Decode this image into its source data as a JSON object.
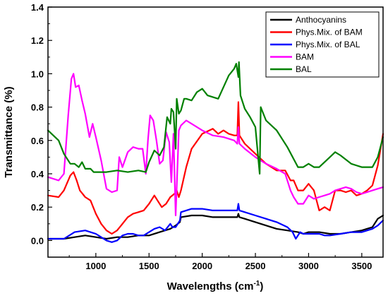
{
  "chart_data": {
    "type": "line",
    "title": "",
    "xlabel": "Wavelengths (cm",
    "xlabel_sup": "-1",
    "xlabel_tail": ")",
    "ylabel": "Transmittance (%)",
    "xlim": [
      550,
      3700
    ],
    "ylim": [
      -0.1,
      1.4
    ],
    "x_ticks": [
      1000,
      1500,
      2000,
      2500,
      3000,
      3500
    ],
    "x_tick_labels": [
      "1000",
      "1500",
      "2000",
      "2500",
      "3000",
      "3500"
    ],
    "y_ticks": [
      0.0,
      0.2,
      0.4,
      0.6,
      0.8,
      1.0,
      1.2,
      1.4
    ],
    "y_tick_labels": [
      "0.0",
      "0.2",
      "0.4",
      "0.6",
      "0.8",
      "1.0",
      "1.2",
      "1.4"
    ],
    "grid": false,
    "legend_position": "top-right",
    "series": [
      {
        "name": "Anthocyanins",
        "color": "#000000",
        "points": [
          [
            550,
            0.01
          ],
          [
            700,
            0.01
          ],
          [
            800,
            0.02
          ],
          [
            900,
            0.03
          ],
          [
            1000,
            0.02
          ],
          [
            1100,
            0.01
          ],
          [
            1200,
            0.02
          ],
          [
            1300,
            0.02
          ],
          [
            1400,
            0.03
          ],
          [
            1500,
            0.03
          ],
          [
            1600,
            0.05
          ],
          [
            1650,
            0.06
          ],
          [
            1700,
            0.07
          ],
          [
            1750,
            0.09
          ],
          [
            1790,
            0.11
          ],
          [
            1800,
            0.14
          ],
          [
            1900,
            0.15
          ],
          [
            2000,
            0.15
          ],
          [
            2100,
            0.14
          ],
          [
            2200,
            0.14
          ],
          [
            2300,
            0.14
          ],
          [
            2330,
            0.14
          ],
          [
            2340,
            0.16
          ],
          [
            2350,
            0.14
          ],
          [
            2400,
            0.13
          ],
          [
            2500,
            0.11
          ],
          [
            2600,
            0.09
          ],
          [
            2700,
            0.07
          ],
          [
            2800,
            0.06
          ],
          [
            2900,
            0.05
          ],
          [
            2950,
            0.04
          ],
          [
            3000,
            0.05
          ],
          [
            3100,
            0.05
          ],
          [
            3200,
            0.04
          ],
          [
            3300,
            0.04
          ],
          [
            3400,
            0.05
          ],
          [
            3500,
            0.06
          ],
          [
            3600,
            0.08
          ],
          [
            3650,
            0.13
          ],
          [
            3700,
            0.15
          ]
        ]
      },
      {
        "name": "Phys.Mix. of BAM",
        "color": "#ff0000",
        "points": [
          [
            550,
            0.27
          ],
          [
            650,
            0.26
          ],
          [
            700,
            0.3
          ],
          [
            760,
            0.39
          ],
          [
            790,
            0.41
          ],
          [
            820,
            0.36
          ],
          [
            850,
            0.3
          ],
          [
            900,
            0.26
          ],
          [
            950,
            0.24
          ],
          [
            1000,
            0.16
          ],
          [
            1050,
            0.1
          ],
          [
            1100,
            0.06
          ],
          [
            1150,
            0.04
          ],
          [
            1200,
            0.06
          ],
          [
            1250,
            0.1
          ],
          [
            1300,
            0.14
          ],
          [
            1350,
            0.16
          ],
          [
            1400,
            0.17
          ],
          [
            1450,
            0.18
          ],
          [
            1500,
            0.22
          ],
          [
            1550,
            0.27
          ],
          [
            1580,
            0.24
          ],
          [
            1620,
            0.2
          ],
          [
            1660,
            0.22
          ],
          [
            1700,
            0.26
          ],
          [
            1740,
            0.28
          ],
          [
            1760,
            0.3
          ],
          [
            1780,
            0.26
          ],
          [
            1800,
            0.3
          ],
          [
            1850,
            0.44
          ],
          [
            1900,
            0.55
          ],
          [
            2000,
            0.64
          ],
          [
            2100,
            0.67
          ],
          [
            2150,
            0.64
          ],
          [
            2200,
            0.66
          ],
          [
            2250,
            0.64
          ],
          [
            2300,
            0.63
          ],
          [
            2330,
            0.63
          ],
          [
            2340,
            0.83
          ],
          [
            2350,
            0.63
          ],
          [
            2400,
            0.58
          ],
          [
            2500,
            0.52
          ],
          [
            2600,
            0.46
          ],
          [
            2700,
            0.42
          ],
          [
            2780,
            0.42
          ],
          [
            2830,
            0.36
          ],
          [
            2860,
            0.36
          ],
          [
            2900,
            0.3
          ],
          [
            2950,
            0.3
          ],
          [
            3000,
            0.34
          ],
          [
            3050,
            0.3
          ],
          [
            3100,
            0.18
          ],
          [
            3150,
            0.2
          ],
          [
            3200,
            0.18
          ],
          [
            3250,
            0.3
          ],
          [
            3300,
            0.3
          ],
          [
            3350,
            0.29
          ],
          [
            3400,
            0.3
          ],
          [
            3450,
            0.27
          ],
          [
            3500,
            0.28
          ],
          [
            3550,
            0.3
          ],
          [
            3600,
            0.33
          ],
          [
            3650,
            0.45
          ],
          [
            3700,
            0.64
          ]
        ]
      },
      {
        "name": "Phys.Mix. of BAL",
        "color": "#0000ff",
        "points": [
          [
            550,
            0.01
          ],
          [
            700,
            0.01
          ],
          [
            750,
            0.03
          ],
          [
            800,
            0.05
          ],
          [
            900,
            0.06
          ],
          [
            1000,
            0.04
          ],
          [
            1050,
            0.02
          ],
          [
            1100,
            0.0
          ],
          [
            1150,
            -0.01
          ],
          [
            1200,
            0.0
          ],
          [
            1250,
            0.03
          ],
          [
            1300,
            0.04
          ],
          [
            1350,
            0.04
          ],
          [
            1400,
            0.03
          ],
          [
            1450,
            0.03
          ],
          [
            1500,
            0.05
          ],
          [
            1550,
            0.07
          ],
          [
            1600,
            0.08
          ],
          [
            1650,
            0.06
          ],
          [
            1700,
            0.1
          ],
          [
            1720,
            0.08
          ],
          [
            1750,
            0.08
          ],
          [
            1790,
            0.12
          ],
          [
            1800,
            0.17
          ],
          [
            1900,
            0.19
          ],
          [
            2000,
            0.19
          ],
          [
            2100,
            0.18
          ],
          [
            2200,
            0.18
          ],
          [
            2300,
            0.18
          ],
          [
            2330,
            0.18
          ],
          [
            2340,
            0.22
          ],
          [
            2350,
            0.18
          ],
          [
            2400,
            0.17
          ],
          [
            2500,
            0.15
          ],
          [
            2600,
            0.13
          ],
          [
            2700,
            0.11
          ],
          [
            2800,
            0.08
          ],
          [
            2850,
            0.05
          ],
          [
            2880,
            0.01
          ],
          [
            2920,
            0.05
          ],
          [
            2950,
            0.04
          ],
          [
            3000,
            0.04
          ],
          [
            3100,
            0.04
          ],
          [
            3150,
            0.03
          ],
          [
            3200,
            0.03
          ],
          [
            3300,
            0.04
          ],
          [
            3400,
            0.05
          ],
          [
            3500,
            0.05
          ],
          [
            3600,
            0.07
          ],
          [
            3650,
            0.09
          ],
          [
            3700,
            0.12
          ]
        ]
      },
      {
        "name": "BAM",
        "color": "#ff00ff",
        "points": [
          [
            550,
            0.38
          ],
          [
            650,
            0.36
          ],
          [
            700,
            0.4
          ],
          [
            740,
            0.75
          ],
          [
            770,
            0.97
          ],
          [
            790,
            1.0
          ],
          [
            810,
            0.92
          ],
          [
            840,
            0.93
          ],
          [
            870,
            0.84
          ],
          [
            900,
            0.76
          ],
          [
            940,
            0.62
          ],
          [
            970,
            0.7
          ],
          [
            1000,
            0.62
          ],
          [
            1050,
            0.48
          ],
          [
            1100,
            0.31
          ],
          [
            1150,
            0.29
          ],
          [
            1200,
            0.3
          ],
          [
            1220,
            0.5
          ],
          [
            1250,
            0.44
          ],
          [
            1300,
            0.53
          ],
          [
            1350,
            0.56
          ],
          [
            1400,
            0.55
          ],
          [
            1440,
            0.55
          ],
          [
            1470,
            0.4
          ],
          [
            1490,
            0.6
          ],
          [
            1510,
            0.75
          ],
          [
            1540,
            0.72
          ],
          [
            1570,
            0.6
          ],
          [
            1600,
            0.46
          ],
          [
            1630,
            0.48
          ],
          [
            1660,
            0.65
          ],
          [
            1690,
            0.59
          ],
          [
            1710,
            0.35
          ],
          [
            1730,
            0.64
          ],
          [
            1750,
            0.15
          ],
          [
            1780,
            0.66
          ],
          [
            1800,
            0.69
          ],
          [
            1850,
            0.72
          ],
          [
            1900,
            0.7
          ],
          [
            2000,
            0.66
          ],
          [
            2100,
            0.63
          ],
          [
            2200,
            0.62
          ],
          [
            2300,
            0.6
          ],
          [
            2330,
            0.58
          ],
          [
            2340,
            0.68
          ],
          [
            2350,
            0.58
          ],
          [
            2400,
            0.55
          ],
          [
            2500,
            0.5
          ],
          [
            2600,
            0.46
          ],
          [
            2700,
            0.43
          ],
          [
            2780,
            0.4
          ],
          [
            2830,
            0.3
          ],
          [
            2860,
            0.26
          ],
          [
            2900,
            0.22
          ],
          [
            2950,
            0.22
          ],
          [
            3000,
            0.27
          ],
          [
            3050,
            0.25
          ],
          [
            3100,
            0.26
          ],
          [
            3150,
            0.27
          ],
          [
            3200,
            0.28
          ],
          [
            3250,
            0.3
          ],
          [
            3300,
            0.31
          ],
          [
            3350,
            0.32
          ],
          [
            3400,
            0.31
          ],
          [
            3450,
            0.29
          ],
          [
            3500,
            0.28
          ],
          [
            3550,
            0.29
          ],
          [
            3600,
            0.3
          ],
          [
            3650,
            0.31
          ],
          [
            3700,
            0.32
          ]
        ]
      },
      {
        "name": "BAL",
        "color": "#008000",
        "points": [
          [
            550,
            0.66
          ],
          [
            650,
            0.6
          ],
          [
            700,
            0.52
          ],
          [
            760,
            0.46
          ],
          [
            800,
            0.46
          ],
          [
            840,
            0.44
          ],
          [
            870,
            0.47
          ],
          [
            900,
            0.43
          ],
          [
            950,
            0.43
          ],
          [
            980,
            0.41
          ],
          [
            1050,
            0.41
          ],
          [
            1100,
            0.41
          ],
          [
            1200,
            0.42
          ],
          [
            1300,
            0.41
          ],
          [
            1400,
            0.42
          ],
          [
            1470,
            0.41
          ],
          [
            1500,
            0.47
          ],
          [
            1550,
            0.54
          ],
          [
            1600,
            0.51
          ],
          [
            1640,
            0.56
          ],
          [
            1670,
            0.74
          ],
          [
            1700,
            0.7
          ],
          [
            1710,
            0.79
          ],
          [
            1730,
            0.77
          ],
          [
            1750,
            0.55
          ],
          [
            1760,
            0.85
          ],
          [
            1780,
            0.76
          ],
          [
            1800,
            0.78
          ],
          [
            1830,
            0.85
          ],
          [
            1850,
            0.85
          ],
          [
            1900,
            0.84
          ],
          [
            1950,
            0.89
          ],
          [
            2000,
            0.91
          ],
          [
            2050,
            0.87
          ],
          [
            2100,
            0.86
          ],
          [
            2150,
            0.85
          ],
          [
            2200,
            0.92
          ],
          [
            2250,
            0.99
          ],
          [
            2300,
            1.03
          ],
          [
            2320,
            1.06
          ],
          [
            2340,
            0.98
          ],
          [
            2345,
            1.07
          ],
          [
            2360,
            0.87
          ],
          [
            2400,
            0.79
          ],
          [
            2450,
            0.74
          ],
          [
            2500,
            0.68
          ],
          [
            2540,
            0.4
          ],
          [
            2550,
            0.8
          ],
          [
            2600,
            0.72
          ],
          [
            2700,
            0.66
          ],
          [
            2800,
            0.56
          ],
          [
            2900,
            0.44
          ],
          [
            2950,
            0.44
          ],
          [
            3000,
            0.46
          ],
          [
            3050,
            0.44
          ],
          [
            3100,
            0.44
          ],
          [
            3200,
            0.5
          ],
          [
            3250,
            0.53
          ],
          [
            3300,
            0.51
          ],
          [
            3400,
            0.46
          ],
          [
            3500,
            0.44
          ],
          [
            3600,
            0.44
          ],
          [
            3650,
            0.5
          ],
          [
            3700,
            0.62
          ]
        ]
      }
    ]
  }
}
